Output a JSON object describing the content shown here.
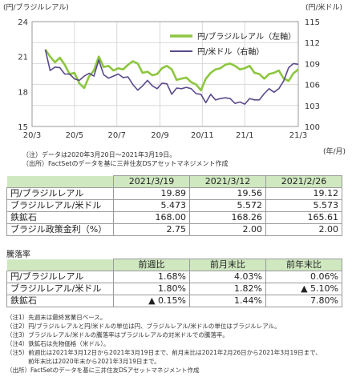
{
  "chart_data": {
    "type": "line",
    "left_axis_title": "(円/ブラジルレアル)",
    "right_axis_title": "(円/米ドル)",
    "y_left_ticks": [
      "24",
      "21",
      "18",
      "15"
    ],
    "y_left_range": [
      15,
      24
    ],
    "y_right_ticks": [
      "115",
      "112",
      "109",
      "106",
      "103",
      "100"
    ],
    "y_right_range": [
      100,
      115
    ],
    "x_ticks": [
      "20/3",
      "20/5",
      "20/7",
      "20/9",
      "20/11",
      "21/1",
      "21/3"
    ],
    "x_unit": "(年/月)",
    "grid": true,
    "legend_position": "top-right",
    "series": [
      {
        "name": "円/ブラジルレアル（左軸）",
        "axis": "left",
        "color": "#8dc63f",
        "x": [
          "2020-03-20",
          "2020-03-27",
          "2020-04-03",
          "2020-04-10",
          "2020-04-17",
          "2020-04-24",
          "2020-05-01",
          "2020-05-08",
          "2020-05-15",
          "2020-05-22",
          "2020-05-29",
          "2020-06-05",
          "2020-06-12",
          "2020-06-19",
          "2020-06-26",
          "2020-07-03",
          "2020-07-10",
          "2020-07-17",
          "2020-07-24",
          "2020-07-31",
          "2020-08-07",
          "2020-08-14",
          "2020-08-21",
          "2020-08-28",
          "2020-09-04",
          "2020-09-11",
          "2020-09-18",
          "2020-09-25",
          "2020-10-02",
          "2020-10-09",
          "2020-10-16",
          "2020-10-23",
          "2020-10-30",
          "2020-11-06",
          "2020-11-13",
          "2020-11-20",
          "2020-11-27",
          "2020-12-04",
          "2020-12-11",
          "2020-12-18",
          "2020-12-25",
          "2021-01-01",
          "2021-01-08",
          "2021-01-15",
          "2021-01-22",
          "2021-01-29",
          "2021-02-05",
          "2021-02-12",
          "2021-02-19",
          "2021-02-26",
          "2021-03-05",
          "2021-03-12",
          "2021-03-19"
        ],
        "values": [
          21.6,
          21.0,
          20.5,
          20.9,
          20.3,
          19.5,
          19.6,
          18.7,
          18.3,
          19.3,
          19.8,
          21.0,
          20.1,
          20.2,
          19.8,
          20.0,
          19.9,
          20.3,
          20.6,
          20.4,
          19.6,
          19.7,
          19.4,
          19.5,
          20.0,
          20.2,
          19.9,
          19.0,
          19.1,
          19.2,
          18.8,
          18.6,
          18.1,
          19.1,
          19.6,
          19.9,
          20.0,
          20.3,
          20.4,
          20.2,
          19.9,
          20.0,
          20.2,
          19.6,
          19.5,
          19.1,
          19.5,
          19.6,
          19.8,
          19.12,
          18.9,
          19.56,
          19.89
        ]
      },
      {
        "name": "円/米ドル（右軸）",
        "axis": "right",
        "color": "#5b4a8b",
        "x": [
          "2020-03-20",
          "2020-03-27",
          "2020-04-03",
          "2020-04-10",
          "2020-04-17",
          "2020-04-24",
          "2020-05-01",
          "2020-05-08",
          "2020-05-15",
          "2020-05-22",
          "2020-05-29",
          "2020-06-05",
          "2020-06-12",
          "2020-06-19",
          "2020-06-26",
          "2020-07-03",
          "2020-07-10",
          "2020-07-17",
          "2020-07-24",
          "2020-07-31",
          "2020-08-07",
          "2020-08-14",
          "2020-08-21",
          "2020-08-28",
          "2020-09-04",
          "2020-09-11",
          "2020-09-18",
          "2020-09-25",
          "2020-10-02",
          "2020-10-09",
          "2020-10-16",
          "2020-10-23",
          "2020-10-30",
          "2020-11-06",
          "2020-11-13",
          "2020-11-20",
          "2020-11-27",
          "2020-12-04",
          "2020-12-11",
          "2020-12-18",
          "2020-12-25",
          "2021-01-01",
          "2021-01-08",
          "2021-01-15",
          "2021-01-22",
          "2021-01-29",
          "2021-02-05",
          "2021-02-12",
          "2021-02-19",
          "2021-02-26",
          "2021-03-05",
          "2021-03-12",
          "2021-03-19"
        ],
        "values": [
          111.0,
          108.0,
          108.5,
          108.4,
          107.5,
          107.5,
          106.8,
          106.6,
          107.2,
          107.6,
          107.2,
          109.5,
          107.4,
          106.9,
          107.2,
          107.5,
          107.0,
          107.1,
          106.0,
          105.2,
          105.8,
          106.6,
          105.8,
          105.4,
          106.2,
          106.1,
          104.6,
          105.5,
          105.4,
          105.6,
          105.4,
          104.7,
          104.6,
          103.4,
          104.6,
          103.8,
          104.0,
          104.1,
          104.0,
          103.3,
          103.5,
          103.2,
          104.0,
          103.8,
          103.8,
          104.7,
          105.4,
          104.9,
          105.4,
          106.5,
          108.4,
          109.0,
          108.9
        ]
      }
    ]
  },
  "chart_notes": [
    "（注）データは2020年3月20日～2021年3月19日。",
    "（出所）FactSetのデータを基に三井住友DSアセットマネジメント作成"
  ],
  "levels_table": {
    "headers": [
      "2021/3/19",
      "2021/3/12",
      "2021/2/26"
    ],
    "rows": [
      {
        "label": "円/ブラジルレアル",
        "values": [
          "19.89",
          "19.56",
          "19.12"
        ]
      },
      {
        "label": "ブラジルレアル/米ドル",
        "values": [
          "5.473",
          "5.572",
          "5.573"
        ]
      },
      {
        "label": "鉄鉱石",
        "values": [
          "168.00",
          "168.26",
          "165.61"
        ]
      },
      {
        "label": "ブラジル政策金利（%）",
        "values": [
          "2.75",
          "2.00",
          "2.00"
        ]
      }
    ]
  },
  "change_section_title": "騰落率",
  "change_table": {
    "headers": [
      "前週比",
      "前月末比",
      "前年末比"
    ],
    "rows": [
      {
        "label": "円/ブラジルレアル",
        "values": [
          "1.68%",
          "4.03%",
          "0.06%"
        ]
      },
      {
        "label": "ブラジルレアル/米ドル",
        "values": [
          "1.80%",
          "1.82%",
          "▲ 5.10%"
        ]
      },
      {
        "label": "鉄鉱石",
        "values": [
          "▲ 0.15%",
          "1.44%",
          "7.80%"
        ]
      }
    ]
  },
  "footnotes": [
    "（注1）先週末は最終営業日ベース。",
    "（注2）円/ブラジルレアルと円/米ドルの単位は円、ブラジルレアル/米ドルの単位はブラジルレアル。",
    "（注3）ブラジルレアル/米ドルの騰落率はブラジルレアルの対米ドルでの騰落率。",
    "（注4）鉄鉱石は先物価格（米ドル）。",
    "（注5）前週比は2021年3月12日から2021年3月19日まで、前月末比は2021年2月26日から2021年3月19日まで、",
    "前年末比は2020年末から2021年3月19日まで。",
    "（出所）FactSetのデータを基に三井住友DSアセットマネジメント作成"
  ]
}
